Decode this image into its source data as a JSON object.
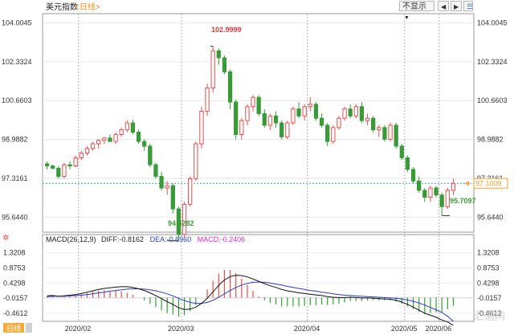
{
  "header": {
    "symbol": "美元指数",
    "period_label": "<日线>",
    "display_toggle": "不显示",
    "nav_prev": "◀",
    "nav_next": "▶"
  },
  "price_axis": {
    "ticks": [
      "104.0045",
      "102.3324",
      "100.6603",
      "98.9882",
      "97.3161",
      "95.6440"
    ],
    "current_value": "97.1009"
  },
  "macd_axis": {
    "ticks": [
      "1.3208",
      "0.8753",
      "0.4298",
      "-0.0157",
      "-0.4612"
    ]
  },
  "macd_legend": {
    "name": "MACD(26,12,9)",
    "diff_text": "DIFF:-0.8162",
    "dea_text": "DEA:-0.6960",
    "macd_text": "MACD:-0.2406"
  },
  "x_axis": {
    "months": [
      "2020/02",
      "2020/03",
      "2020/04",
      "2020/05",
      "2020/06"
    ]
  },
  "annotations": {
    "high": "102.9999",
    "low_mar": "94.6282",
    "low_jun": "95.7097"
  },
  "footer": {
    "timeframe_label": "日线"
  },
  "watermark": "汇通网",
  "colors": {
    "up": "#e05050",
    "down": "#3a9a3a",
    "diff": "#111111",
    "dea": "#2a3cc8",
    "current_line": "#4a9ad6",
    "current_box": "#f0a030"
  },
  "chart_data": [
    {
      "type": "candlestick",
      "title": "美元指数 <日线>",
      "categories_months": [
        "2020/02",
        "2020/03",
        "2020/04",
        "2020/05",
        "2020/06"
      ],
      "ylim": [
        95.0,
        104.4
      ],
      "ohlc": [
        [
          97.94,
          98.05,
          97.7,
          97.85
        ],
        [
          97.85,
          97.9,
          97.7,
          97.75
        ],
        [
          97.75,
          97.85,
          97.3,
          97.4
        ],
        [
          97.4,
          97.98,
          97.3,
          97.9
        ],
        [
          97.9,
          98.05,
          97.7,
          97.85
        ],
        [
          97.85,
          98.3,
          97.8,
          98.2
        ],
        [
          98.2,
          98.5,
          98.1,
          98.4
        ],
        [
          98.4,
          98.7,
          98.3,
          98.6
        ],
        [
          98.6,
          98.9,
          98.5,
          98.8
        ],
        [
          98.8,
          99.0,
          98.6,
          98.95
        ],
        [
          98.95,
          99.1,
          98.8,
          99.05
        ],
        [
          99.05,
          99.2,
          98.9,
          98.9
        ],
        [
          98.9,
          99.3,
          98.8,
          99.2
        ],
        [
          99.2,
          99.5,
          99.1,
          99.4
        ],
        [
          99.4,
          99.8,
          99.3,
          99.7
        ],
        [
          99.7,
          99.85,
          99.2,
          99.3
        ],
        [
          99.3,
          99.4,
          98.8,
          98.9
        ],
        [
          98.9,
          99.0,
          98.5,
          98.7
        ],
        [
          98.7,
          98.8,
          97.8,
          97.9
        ],
        [
          97.9,
          98.0,
          97.3,
          97.4
        ],
        [
          97.4,
          97.6,
          96.8,
          96.9
        ],
        [
          96.9,
          97.2,
          96.6,
          97.0
        ],
        [
          97.0,
          97.1,
          95.8,
          96.0
        ],
        [
          96.0,
          96.1,
          94.63,
          94.9
        ],
        [
          94.9,
          96.3,
          94.8,
          96.2
        ],
        [
          96.2,
          97.4,
          96.1,
          97.3
        ],
        [
          97.3,
          98.9,
          97.2,
          98.8
        ],
        [
          98.8,
          100.4,
          98.6,
          100.2
        ],
        [
          100.2,
          101.4,
          100.0,
          101.2
        ],
        [
          101.2,
          103.0,
          101.0,
          102.8
        ],
        [
          102.8,
          102.9,
          102.2,
          102.5
        ],
        [
          102.5,
          102.6,
          101.8,
          101.9
        ],
        [
          101.9,
          102.0,
          100.3,
          100.6
        ],
        [
          100.6,
          100.7,
          99.0,
          99.2
        ],
        [
          99.2,
          99.9,
          99.0,
          99.8
        ],
        [
          99.8,
          100.5,
          99.6,
          100.4
        ],
        [
          100.4,
          100.9,
          100.2,
          100.8
        ],
        [
          100.8,
          100.9,
          100.0,
          100.1
        ],
        [
          100.1,
          100.3,
          99.5,
          99.6
        ],
        [
          99.6,
          100.1,
          99.4,
          100.0
        ],
        [
          100.0,
          100.2,
          99.5,
          99.7
        ],
        [
          99.7,
          99.8,
          99.0,
          99.1
        ],
        [
          99.1,
          99.8,
          99.0,
          99.7
        ],
        [
          99.7,
          100.4,
          99.6,
          100.3
        ],
        [
          100.3,
          100.6,
          99.9,
          100.0
        ],
        [
          100.0,
          100.5,
          99.8,
          100.4
        ],
        [
          100.4,
          100.8,
          100.2,
          100.5
        ],
        [
          100.5,
          100.6,
          99.8,
          99.9
        ],
        [
          99.9,
          100.1,
          99.5,
          99.6
        ],
        [
          99.6,
          99.7,
          98.7,
          98.9
        ],
        [
          98.9,
          99.6,
          98.8,
          99.5
        ],
        [
          99.5,
          100.0,
          99.4,
          99.9
        ],
        [
          99.9,
          100.4,
          99.8,
          100.3
        ],
        [
          100.3,
          100.5,
          99.9,
          100.0
        ],
        [
          100.0,
          100.5,
          99.9,
          100.4
        ],
        [
          100.4,
          100.6,
          99.7,
          99.8
        ],
        [
          99.8,
          100.1,
          99.6,
          99.9
        ],
        [
          99.9,
          100.0,
          99.3,
          99.4
        ],
        [
          99.4,
          99.6,
          99.1,
          99.5
        ],
        [
          99.5,
          99.6,
          98.9,
          99.0
        ],
        [
          99.0,
          99.7,
          98.9,
          99.6
        ],
        [
          99.6,
          99.7,
          98.6,
          98.7
        ],
        [
          98.7,
          98.8,
          98.1,
          98.2
        ],
        [
          98.2,
          98.3,
          97.6,
          97.7
        ],
        [
          97.7,
          97.8,
          97.1,
          97.2
        ],
        [
          97.2,
          97.4,
          96.7,
          96.8
        ],
        [
          96.8,
          96.9,
          96.3,
          96.5
        ],
        [
          96.5,
          97.0,
          96.3,
          96.9
        ],
        [
          96.9,
          97.0,
          96.5,
          96.6
        ],
        [
          96.6,
          96.7,
          95.71,
          96.1
        ],
        [
          96.1,
          96.9,
          96.0,
          96.8
        ],
        [
          96.8,
          97.3,
          96.6,
          97.1
        ]
      ]
    },
    {
      "type": "line",
      "title": "MACD(26,12,9)",
      "ylim": [
        -0.7,
        1.55
      ],
      "series": [
        {
          "name": "DIFF",
          "values": [
            0.05,
            0.06,
            0.04,
            0.05,
            0.07,
            0.09,
            0.12,
            0.16,
            0.2,
            0.24,
            0.27,
            0.29,
            0.31,
            0.32,
            0.32,
            0.3,
            0.26,
            0.21,
            0.14,
            0.06,
            -0.03,
            -0.12,
            -0.2,
            -0.3,
            -0.35,
            -0.34,
            -0.28,
            -0.17,
            -0.02,
            0.17,
            0.36,
            0.52,
            0.62,
            0.66,
            0.65,
            0.61,
            0.55,
            0.48,
            0.41,
            0.35,
            0.3,
            0.24,
            0.2,
            0.17,
            0.14,
            0.12,
            0.1,
            0.08,
            0.06,
            0.03,
            0.01,
            0.0,
            0.0,
            0.01,
            0.0,
            -0.01,
            -0.01,
            -0.02,
            -0.03,
            -0.04,
            -0.05,
            -0.08,
            -0.13,
            -0.2,
            -0.28,
            -0.37,
            -0.46,
            -0.52,
            -0.58,
            -0.66,
            -0.72,
            -0.8162
          ]
        },
        {
          "name": "DEA",
          "values": [
            0.03,
            0.04,
            0.04,
            0.04,
            0.05,
            0.06,
            0.07,
            0.09,
            0.11,
            0.14,
            0.16,
            0.19,
            0.21,
            0.23,
            0.25,
            0.26,
            0.26,
            0.25,
            0.23,
            0.2,
            0.16,
            0.11,
            0.05,
            -0.02,
            -0.09,
            -0.14,
            -0.17,
            -0.17,
            -0.14,
            -0.08,
            0.01,
            0.11,
            0.21,
            0.3,
            0.37,
            0.42,
            0.45,
            0.46,
            0.45,
            0.43,
            0.4,
            0.37,
            0.33,
            0.3,
            0.27,
            0.24,
            0.21,
            0.19,
            0.16,
            0.14,
            0.11,
            0.09,
            0.07,
            0.06,
            0.05,
            0.04,
            0.03,
            0.02,
            0.01,
            0.0,
            -0.01,
            -0.02,
            -0.04,
            -0.07,
            -0.11,
            -0.16,
            -0.22,
            -0.29,
            -0.36,
            -0.44,
            -0.55,
            -0.696
          ]
        },
        {
          "name": "MACD",
          "values": [
            0.04,
            0.04,
            0.0,
            0.02,
            0.04,
            0.06,
            0.1,
            0.14,
            0.18,
            0.2,
            0.22,
            0.2,
            0.2,
            0.18,
            0.14,
            0.08,
            0.0,
            -0.08,
            -0.18,
            -0.28,
            -0.38,
            -0.46,
            -0.5,
            -0.56,
            -0.52,
            -0.4,
            -0.22,
            0.0,
            0.24,
            0.5,
            0.7,
            0.82,
            0.82,
            0.72,
            0.56,
            0.38,
            0.2,
            0.04,
            -0.08,
            -0.16,
            -0.2,
            -0.26,
            -0.26,
            -0.26,
            -0.26,
            -0.24,
            -0.22,
            -0.22,
            -0.2,
            -0.22,
            -0.2,
            -0.18,
            -0.14,
            -0.1,
            -0.1,
            -0.1,
            -0.08,
            -0.08,
            -0.08,
            -0.08,
            -0.08,
            -0.12,
            -0.18,
            -0.26,
            -0.34,
            -0.42,
            -0.48,
            -0.46,
            -0.44,
            -0.44,
            -0.34,
            -0.2406
          ]
        }
      ]
    }
  ]
}
